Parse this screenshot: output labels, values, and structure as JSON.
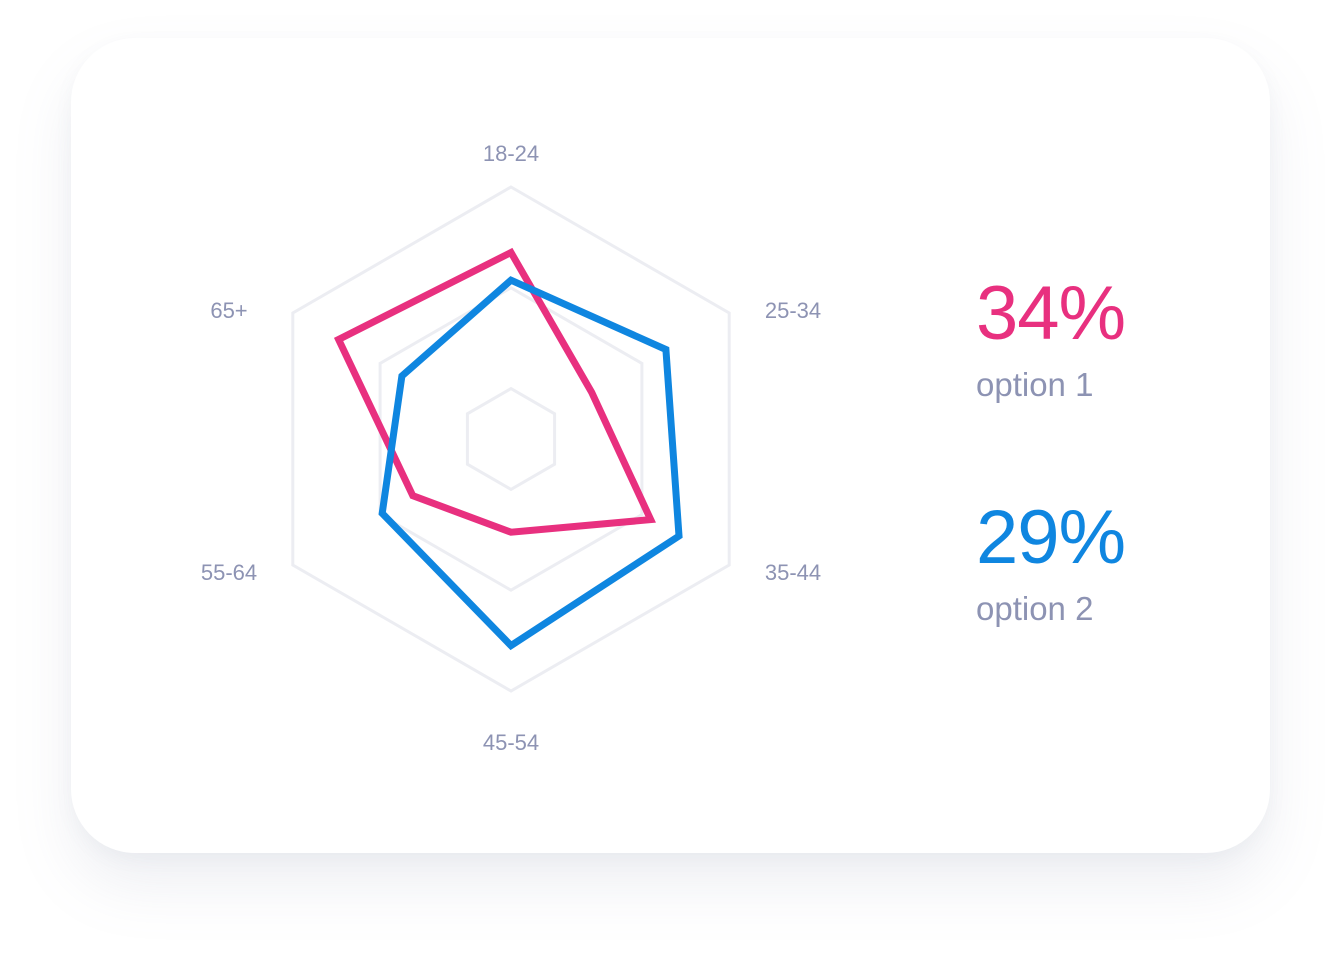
{
  "chart_data": {
    "type": "radar",
    "axes": [
      "18-24",
      "25-34",
      "35-44",
      "45-54",
      "55-64",
      "65+"
    ],
    "rlim": [
      0,
      1
    ],
    "grid_levels": [
      0.2,
      0.6,
      1.0
    ],
    "series": [
      {
        "color": "#e8307f",
        "values": [
          0.74,
          0.37,
          0.64,
          0.37,
          0.45,
          0.79
        ]
      },
      {
        "color": "#0f86e0",
        "values": [
          0.63,
          0.71,
          0.77,
          0.82,
          0.59,
          0.5
        ]
      }
    ]
  },
  "stats": [
    {
      "value": "34%",
      "label": "option 1",
      "color": "#e8307f"
    },
    {
      "value": "29%",
      "label": "option 2",
      "color": "#0f86e0"
    }
  ]
}
